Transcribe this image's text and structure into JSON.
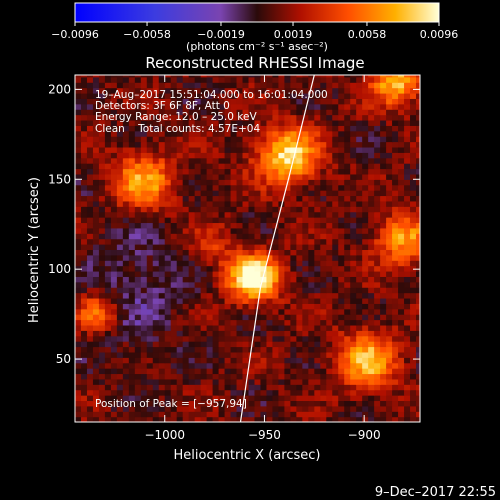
{
  "chart_data": {
    "type": "heatmap",
    "title": "Reconstructed RHESSI Image",
    "xlabel": "Heliocentric X (arcsec)",
    "ylabel": "Heliocentric Y (arcsec)",
    "xlim": [
      -1045,
      -872
    ],
    "ylim": [
      15,
      208
    ],
    "xticks": [
      {
        "v": -1000,
        "label": "−1000"
      },
      {
        "v": -950,
        "label": "−950"
      },
      {
        "v": -900,
        "label": "−900"
      }
    ],
    "yticks": [
      {
        "v": 50,
        "label": "50"
      },
      {
        "v": 100,
        "label": "100"
      },
      {
        "v": 150,
        "label": "150"
      },
      {
        "v": 200,
        "label": "200"
      }
    ],
    "colorbar": {
      "range": [
        -0.0096,
        0.0096
      ],
      "ticks": [
        {
          "v": -0.0096,
          "label": "−0.0096"
        },
        {
          "v": -0.0058,
          "label": "−0.0058"
        },
        {
          "v": -0.0019,
          "label": "−0.0019"
        },
        {
          "v": 0.0019,
          "label": "0.0019"
        },
        {
          "v": 0.0058,
          "label": "0.0058"
        },
        {
          "v": 0.0096,
          "label": "0.0096"
        }
      ],
      "label": "(photons cm⁻² s⁻¹ asec⁻²)"
    },
    "annotations": [
      "19–Aug–2017 15:51:04.000 to 16:01:04.000",
      "Detectors: 3F 6F 8F, Att 0",
      "Energy Range: 12.0 – 25.0 keV",
      "Clean    Total counts: 4.57E+04"
    ],
    "peak_label": "Position of Peak = [−957,94]",
    "limb": [
      [
        -925,
        208
      ],
      [
        -938,
        150
      ],
      [
        -952,
        90
      ],
      [
        -962,
        15
      ]
    ],
    "sources": [
      {
        "x": -957,
        "y": 94,
        "amp": 0.0096,
        "sigma": 9
      },
      {
        "x": -940,
        "y": 162,
        "amp": 0.0078,
        "sigma": 11
      },
      {
        "x": -1012,
        "y": 148,
        "amp": 0.006,
        "sigma": 11
      },
      {
        "x": -885,
        "y": 203,
        "amp": 0.0068,
        "sigma": 9
      },
      {
        "x": -882,
        "y": 115,
        "amp": 0.0058,
        "sigma": 10
      },
      {
        "x": -900,
        "y": 48,
        "amp": 0.0066,
        "sigma": 11
      },
      {
        "x": -1035,
        "y": 75,
        "amp": 0.005,
        "sigma": 7
      },
      {
        "x": -978,
        "y": 112,
        "amp": 0.0025,
        "sigma": 8
      }
    ],
    "background": 0.0009,
    "noise_amplitude": 0.0012,
    "grid": false
  },
  "footer": {
    "date": "9–Dec–2017 22:55"
  }
}
